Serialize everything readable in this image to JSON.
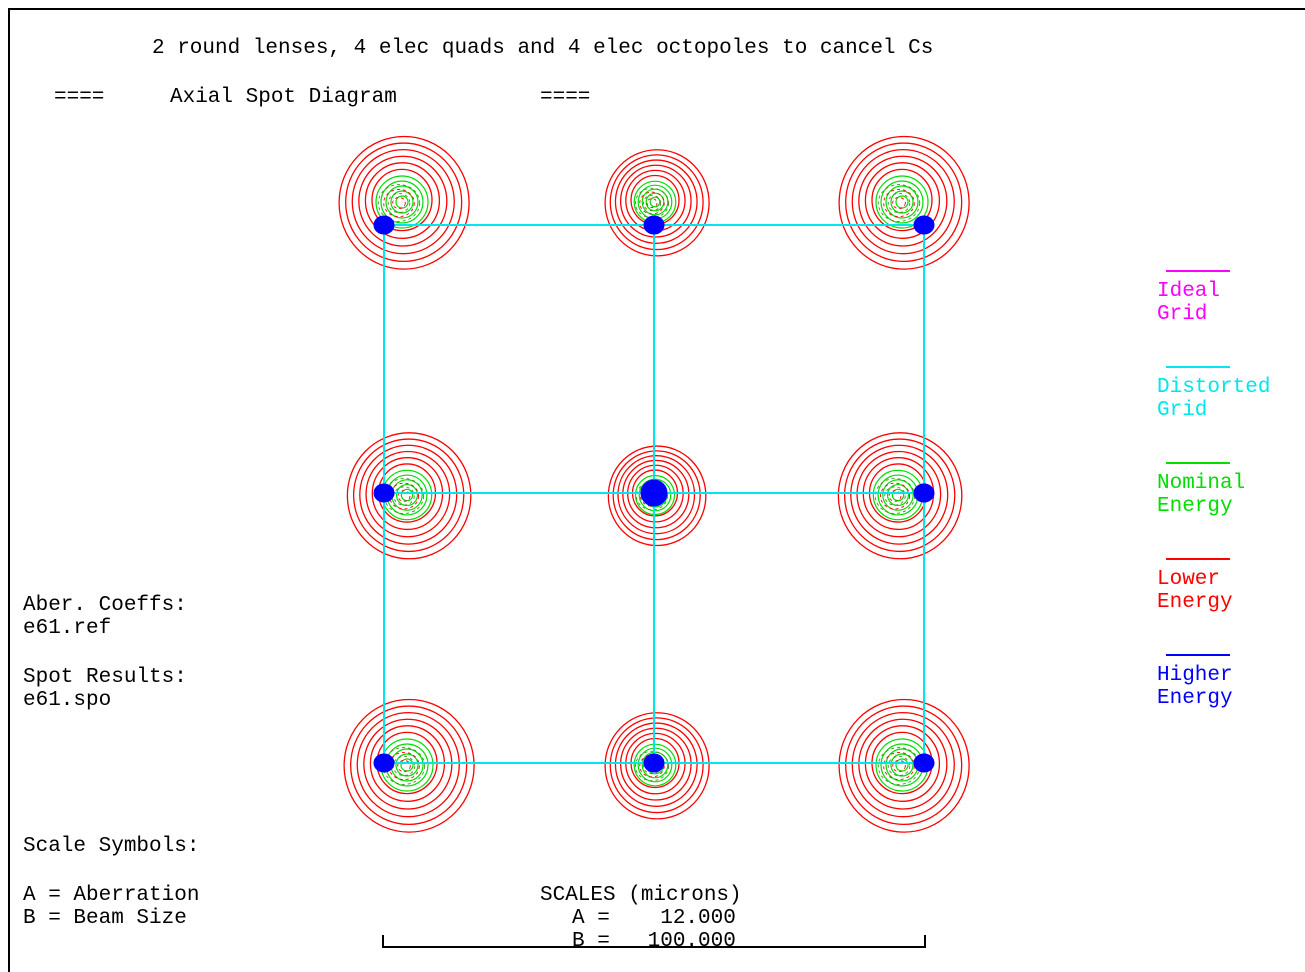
{
  "title": "2 round lenses, 4 elec quads and 4 elec octopoles to cancel Cs",
  "subtitle": {
    "left_marks": "====",
    "label": "Axial Spot Diagram",
    "right_marks": "===="
  },
  "info": {
    "aber_label": "Aber. Coeffs:",
    "aber_file": "e61.ref",
    "spot_label": "Spot Results:",
    "spot_file": "e61.spo",
    "scale_symbols_label": "Scale Symbols:",
    "symbol_a": "A = Aberration",
    "symbol_b": "B = Beam Size"
  },
  "scales": {
    "heading": "SCALES (microns)",
    "a_line": "A =    12.000",
    "b_line": "B =   100.000",
    "a_value": 12.0,
    "b_value": 100.0
  },
  "legend": [
    {
      "line1": "Ideal",
      "line2": "Grid",
      "color": "#ff00ff"
    },
    {
      "line1": "Distorted",
      "line2": "Grid",
      "color": "#00e5ee"
    },
    {
      "line1": "Nominal",
      "line2": "Energy",
      "color": "#00dd00"
    },
    {
      "line1": "Lower",
      "line2": "Energy",
      "color": "#ff0000"
    },
    {
      "line1": "Higher",
      "line2": "Energy",
      "color": "#0000ff"
    }
  ],
  "colors": {
    "ideal_grid": "#ff00ff",
    "distorted_grid": "#00e5ee",
    "nominal_energy": "#00dd00",
    "lower_energy": "#ff0000",
    "higher_energy": "#0000ff",
    "text": "#000000"
  }
}
